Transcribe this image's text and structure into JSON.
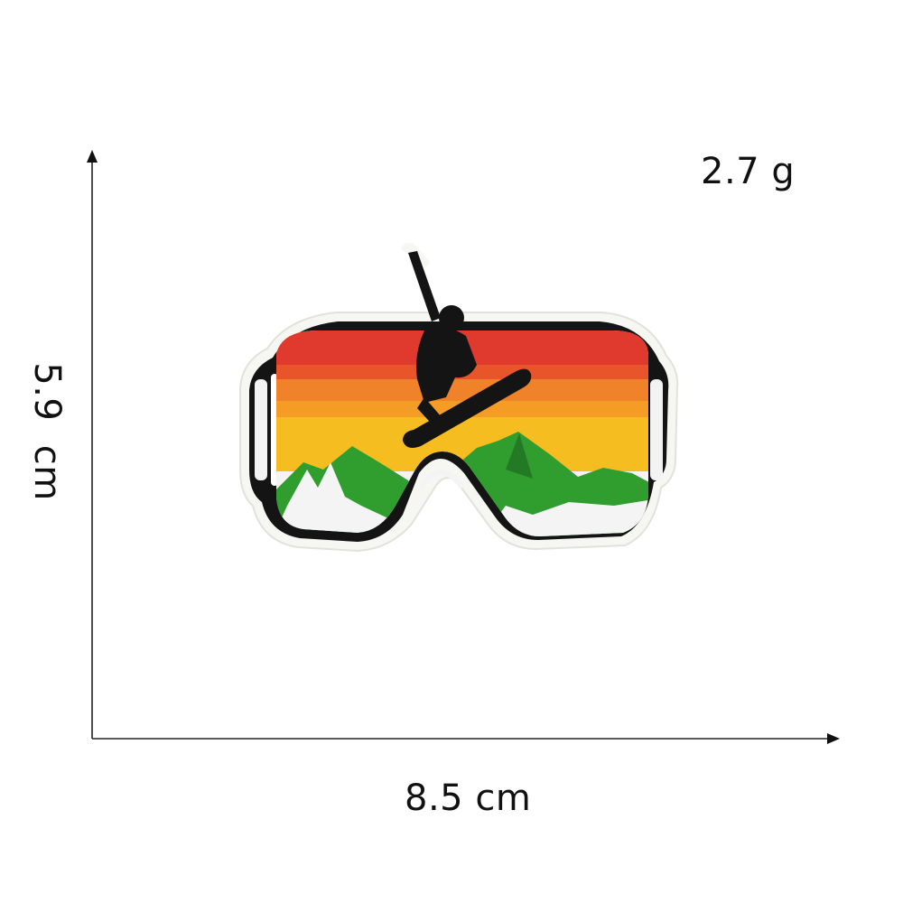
{
  "product": {
    "name": "Snowboarder ski goggles embroidered patch",
    "weight_label": "2.7 g",
    "width_label": "8.5 cm",
    "height_label": "5.9  cm"
  },
  "colors": {
    "background": "#ffffff",
    "text": "#111111",
    "stripe_red": "#e03a2e",
    "stripe_orange": "#f0822a",
    "stripe_yellow": "#f6bd21",
    "mountain_green": "#2f9e2f",
    "snow_white": "#f4f4f4",
    "outline_black": "#111111"
  }
}
